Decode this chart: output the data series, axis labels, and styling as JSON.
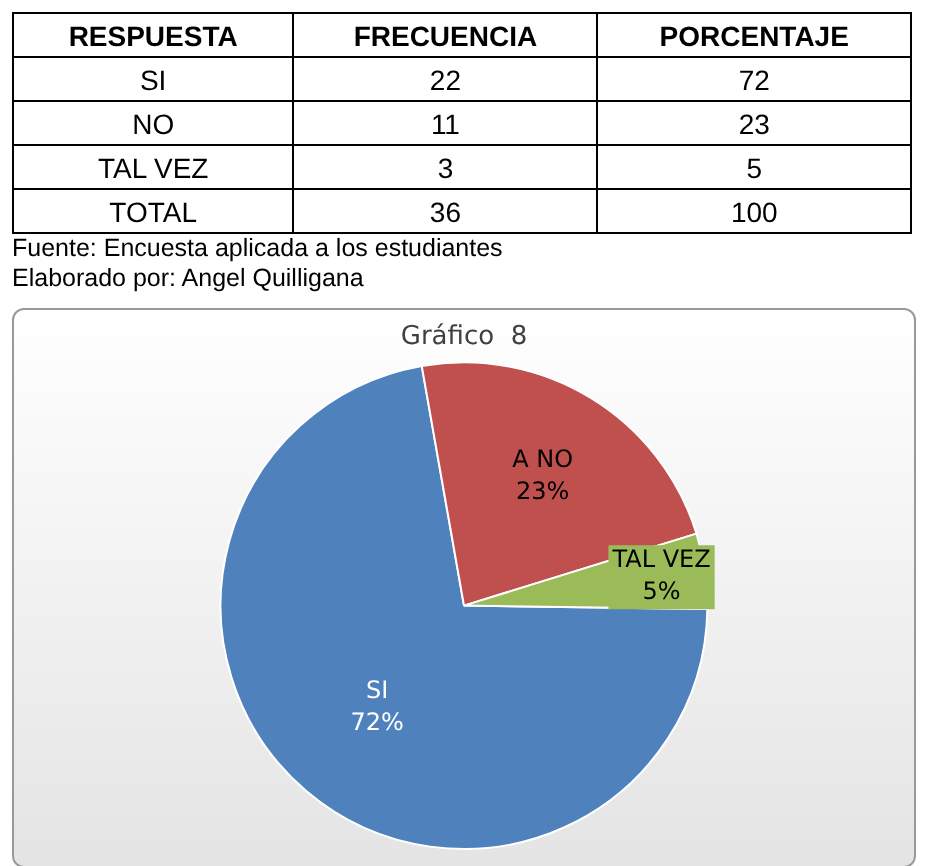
{
  "chart_data": [
    {
      "type": "other",
      "xlabel": "RESPUESTA",
      "categories": [
        "SI",
        "NO",
        "TAL VEZ",
        "TOTAL"
      ],
      "data_labels": true,
      "series": [
        {
          "name": "FRECUENCIA",
          "values": [
            22,
            11,
            3,
            36
          ]
        },
        {
          "name": "PORCENTAJE",
          "values": [
            72,
            23,
            5,
            100
          ]
        }
      ],
      "annotations": [
        "Fuente: Encuesta aplicada a  los estudiantes",
        "Elaborado por: Angel Quilligana"
      ]
    },
    {
      "type": "pie",
      "title": "Gráfico  8",
      "categories": [
        "SI",
        "A NO",
        "TAL VEZ"
      ],
      "values": [
        72,
        23,
        5
      ],
      "colors": [
        "#4f81bd",
        "#c0504d",
        "#9bbb59"
      ],
      "value_labels": [
        "72%",
        "23%",
        "5%"
      ]
    }
  ]
}
